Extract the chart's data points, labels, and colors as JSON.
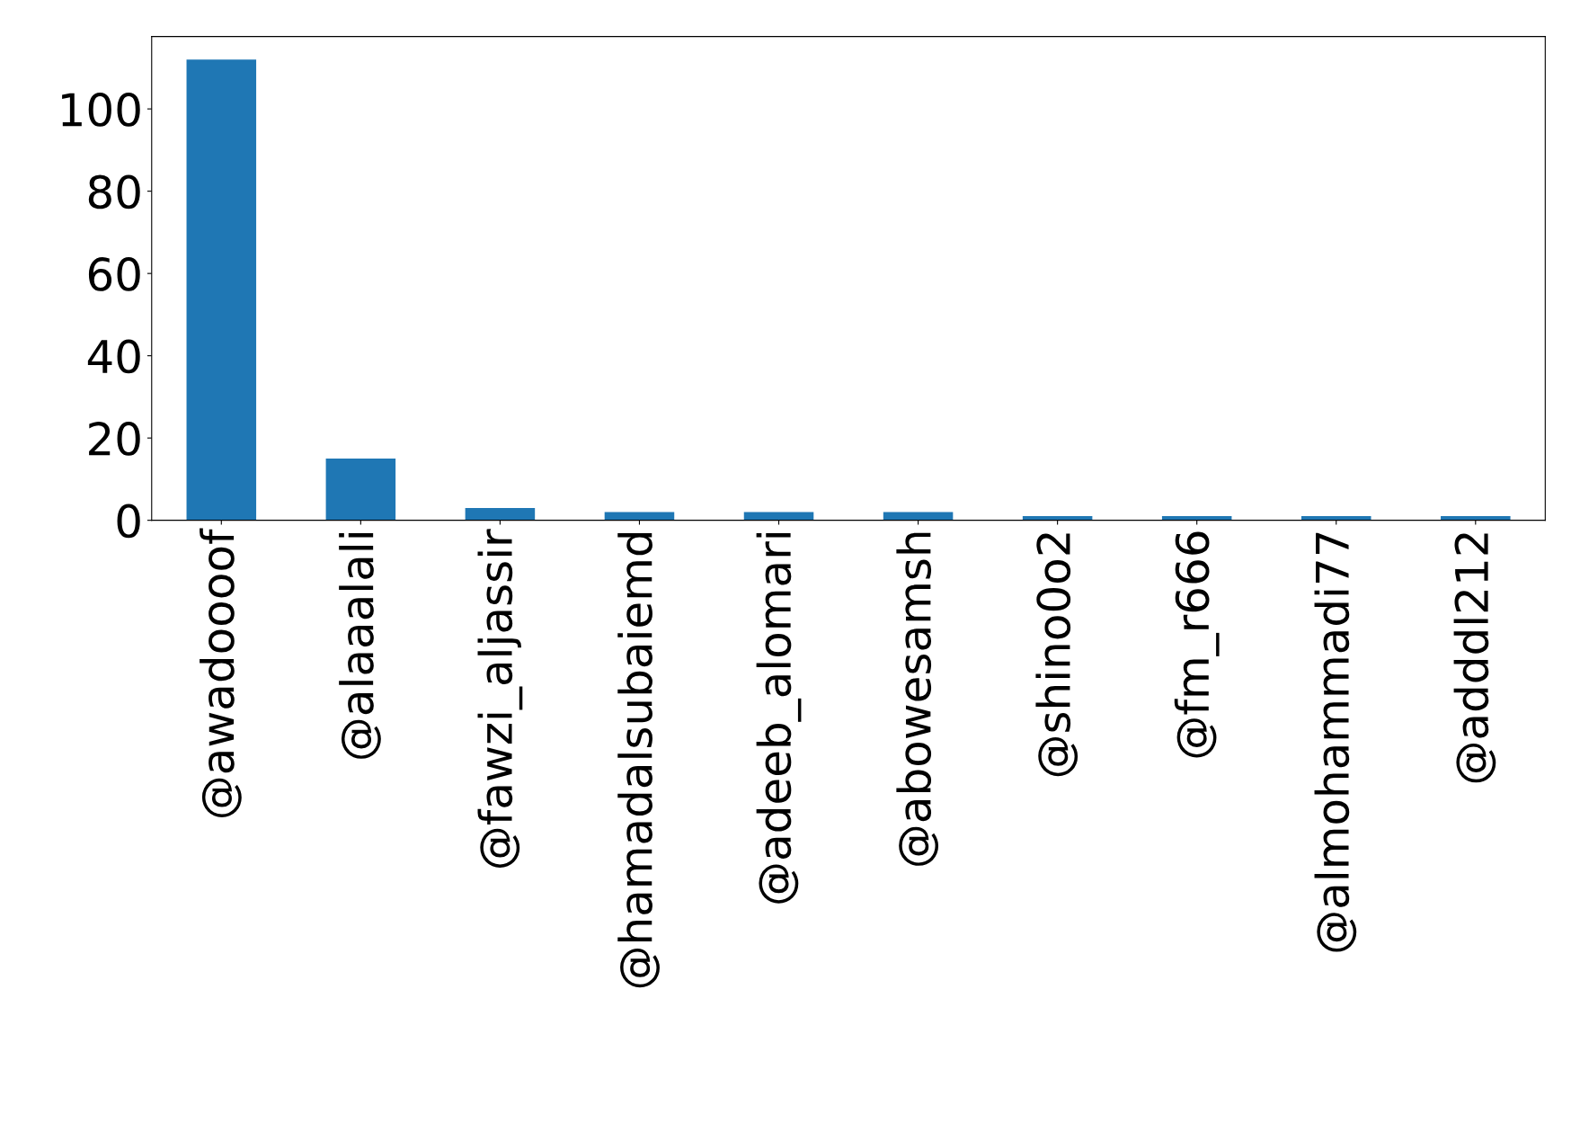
{
  "chart_data": {
    "type": "bar",
    "categories": [
      "@awadoooof",
      "@alaaalali",
      "@fawzi_aljassir",
      "@hamadalsubaiemd",
      "@adeeb_alomari",
      "@abowesamsh",
      "@shino0o2",
      "@fm_r666",
      "@almohammadi77",
      "@adddl212"
    ],
    "values": [
      112,
      15,
      3,
      2,
      2,
      2,
      1,
      1,
      1,
      1
    ],
    "color": "#1f77b4",
    "ylim": [
      0,
      117.6
    ],
    "yticks": [
      0,
      20,
      40,
      60,
      80,
      100
    ],
    "grid": false,
    "legend": false
  }
}
